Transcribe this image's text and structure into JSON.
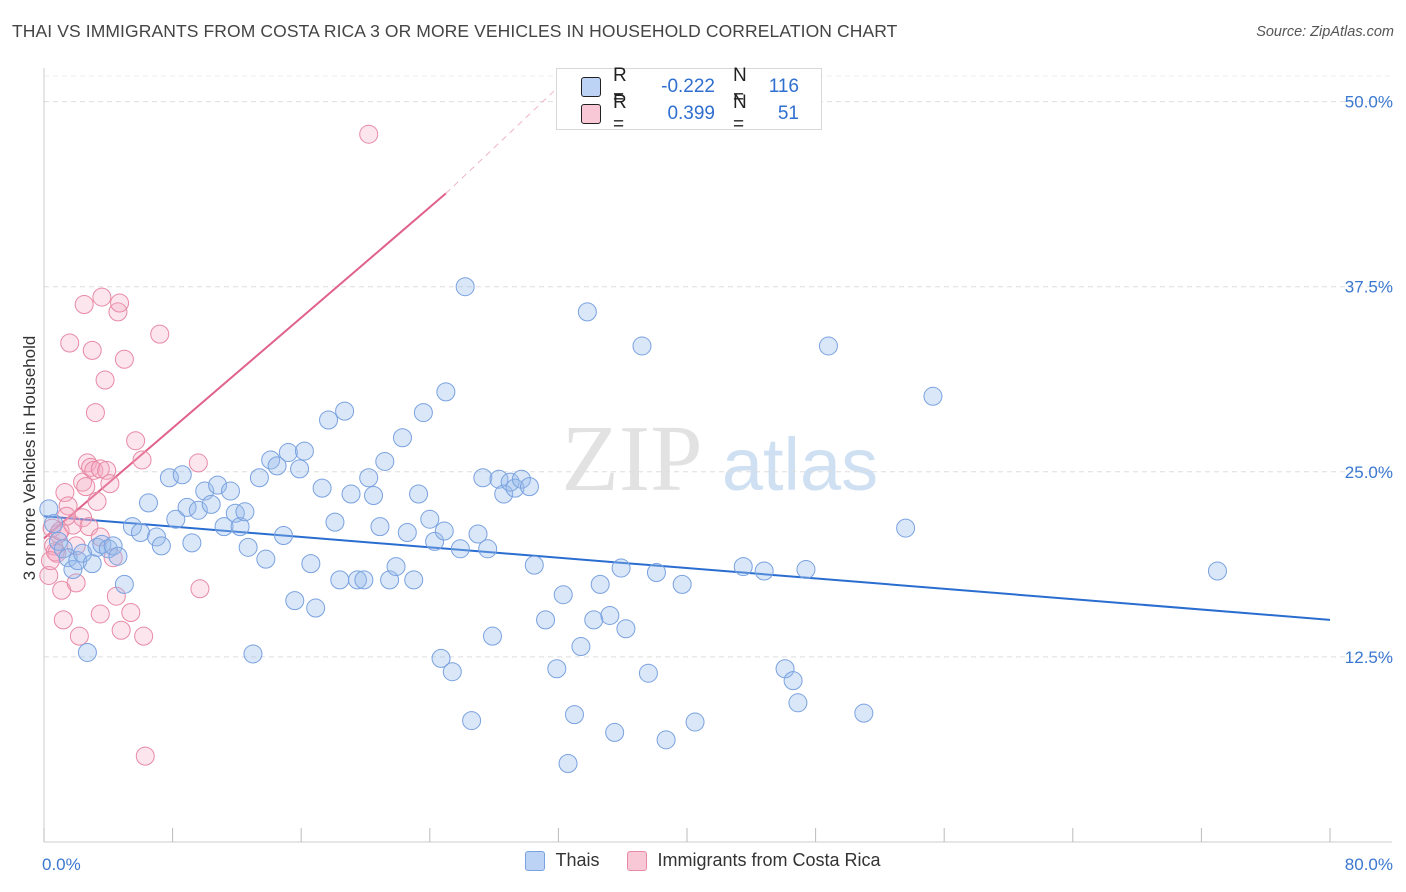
{
  "title": "THAI VS IMMIGRANTS FROM COSTA RICA 3 OR MORE VEHICLES IN HOUSEHOLD CORRELATION CHART",
  "source": "Source: ZipAtlas.com",
  "watermark": {
    "part1": "ZIP",
    "part2": "atlas"
  },
  "stats": [
    {
      "r_label": "R =",
      "r_value": "-0.222",
      "n_label": "N =",
      "n_value": "116",
      "color": "#7aa2e0"
    },
    {
      "r_label": "R =",
      "r_value": "0.399",
      "n_label": "N =",
      "n_value": "51",
      "color": "#e88aa6"
    }
  ],
  "legend": [
    {
      "label": "Thais",
      "color": "#7aa2e0"
    },
    {
      "label": "Immigrants from Costa Rica",
      "color": "#e88aa6"
    }
  ],
  "chart_data": {
    "type": "scatter",
    "title": "THAI VS IMMIGRANTS FROM COSTA RICA 3 OR MORE VEHICLES IN HOUSEHOLD CORRELATION CHART",
    "xlabel": "",
    "ylabel": "3 or more Vehicles in Household",
    "xlim": [
      0,
      80
    ],
    "ylim": [
      0,
      52
    ],
    "x_tick_labels": [
      "0.0%",
      "80.0%"
    ],
    "y_ticks": [
      12.5,
      25.0,
      37.5,
      50.0
    ],
    "y_tick_labels": [
      "12.5%",
      "25.0%",
      "37.5%",
      "50.0%"
    ],
    "grid": "horizontal dashed",
    "series": [
      {
        "name": "Thais",
        "color": "#7aa2e0",
        "trend": {
          "x": [
            0,
            80
          ],
          "y": [
            22.0,
            15.0
          ],
          "style": "solid"
        },
        "points": [
          [
            0.3,
            22.5
          ],
          [
            0.6,
            21.5
          ],
          [
            0.9,
            20.3
          ],
          [
            1.2,
            19.8
          ],
          [
            1.5,
            19.2
          ],
          [
            1.8,
            18.4
          ],
          [
            2.1,
            19.0
          ],
          [
            2.4,
            19.5
          ],
          [
            2.7,
            12.8
          ],
          [
            3.0,
            18.8
          ],
          [
            3.3,
            19.9
          ],
          [
            3.6,
            20.1
          ],
          [
            4.0,
            19.8
          ],
          [
            4.3,
            20.0
          ],
          [
            4.6,
            19.3
          ],
          [
            5.0,
            17.4
          ],
          [
            5.5,
            21.3
          ],
          [
            6.0,
            20.9
          ],
          [
            6.5,
            22.9
          ],
          [
            7.0,
            20.6
          ],
          [
            7.3,
            20.0
          ],
          [
            7.8,
            24.6
          ],
          [
            8.2,
            21.8
          ],
          [
            8.6,
            24.8
          ],
          [
            8.9,
            22.6
          ],
          [
            9.2,
            20.2
          ],
          [
            9.6,
            22.4
          ],
          [
            10.0,
            23.7
          ],
          [
            10.4,
            22.8
          ],
          [
            10.8,
            24.1
          ],
          [
            11.2,
            21.3
          ],
          [
            11.6,
            23.7
          ],
          [
            11.9,
            22.2
          ],
          [
            12.2,
            21.3
          ],
          [
            12.5,
            22.3
          ],
          [
            12.7,
            19.9
          ],
          [
            13.0,
            12.7
          ],
          [
            13.4,
            24.6
          ],
          [
            13.8,
            19.1
          ],
          [
            14.1,
            25.8
          ],
          [
            14.5,
            25.4
          ],
          [
            14.9,
            20.7
          ],
          [
            15.2,
            26.3
          ],
          [
            15.6,
            16.3
          ],
          [
            15.9,
            25.2
          ],
          [
            16.2,
            26.4
          ],
          [
            16.6,
            18.8
          ],
          [
            16.9,
            15.8
          ],
          [
            17.3,
            23.9
          ],
          [
            17.7,
            28.5
          ],
          [
            18.1,
            21.6
          ],
          [
            18.4,
            17.7
          ],
          [
            18.7,
            29.1
          ],
          [
            19.1,
            23.5
          ],
          [
            19.5,
            17.7
          ],
          [
            19.9,
            17.7
          ],
          [
            20.2,
            24.6
          ],
          [
            20.5,
            23.4
          ],
          [
            20.9,
            21.3
          ],
          [
            21.2,
            25.7
          ],
          [
            21.5,
            17.7
          ],
          [
            21.9,
            18.6
          ],
          [
            22.3,
            27.3
          ],
          [
            22.6,
            20.9
          ],
          [
            23.0,
            17.7
          ],
          [
            23.3,
            23.5
          ],
          [
            23.6,
            29.0
          ],
          [
            24.0,
            21.8
          ],
          [
            24.3,
            20.3
          ],
          [
            24.7,
            12.4
          ],
          [
            24.9,
            21.0
          ],
          [
            25.0,
            30.4
          ],
          [
            25.4,
            11.5
          ],
          [
            25.9,
            19.8
          ],
          [
            26.2,
            37.5
          ],
          [
            26.6,
            8.2
          ],
          [
            27.0,
            20.8
          ],
          [
            27.3,
            24.6
          ],
          [
            27.6,
            19.8
          ],
          [
            27.9,
            13.9
          ],
          [
            28.3,
            24.5
          ],
          [
            28.6,
            23.5
          ],
          [
            29.0,
            24.3
          ],
          [
            29.3,
            23.9
          ],
          [
            29.7,
            24.5
          ],
          [
            30.2,
            24.0
          ],
          [
            30.5,
            18.7
          ],
          [
            31.2,
            15.0
          ],
          [
            31.9,
            11.7
          ],
          [
            32.3,
            16.7
          ],
          [
            32.6,
            5.3
          ],
          [
            33.0,
            8.6
          ],
          [
            33.4,
            13.2
          ],
          [
            33.8,
            35.8
          ],
          [
            34.2,
            15.0
          ],
          [
            34.6,
            17.4
          ],
          [
            35.2,
            15.3
          ],
          [
            35.5,
            7.4
          ],
          [
            35.9,
            18.5
          ],
          [
            36.2,
            14.4
          ],
          [
            37.2,
            33.5
          ],
          [
            37.6,
            11.4
          ],
          [
            38.1,
            18.2
          ],
          [
            38.7,
            6.9
          ],
          [
            39.7,
            17.4
          ],
          [
            40.5,
            8.1
          ],
          [
            43.5,
            18.6
          ],
          [
            44.8,
            18.3
          ],
          [
            46.1,
            11.7
          ],
          [
            46.6,
            10.9
          ],
          [
            46.9,
            9.4
          ],
          [
            47.4,
            18.4
          ],
          [
            48.8,
            33.5
          ],
          [
            51.0,
            8.7
          ],
          [
            53.6,
            21.2
          ],
          [
            55.3,
            30.1
          ],
          [
            73.0,
            18.3
          ]
        ]
      },
      {
        "name": "Immigrants from Costa Rica",
        "color": "#e88aa6",
        "trend": {
          "x": [
            0,
            25
          ],
          "y": [
            20.5,
            43.8
          ],
          "dashed_extension_to": [
            32,
            51.0
          ],
          "style": "solid"
        },
        "points": [
          [
            0.3,
            18.0
          ],
          [
            0.5,
            21.2
          ],
          [
            0.7,
            19.6
          ],
          [
            0.9,
            20.8
          ],
          [
            1.1,
            17.0
          ],
          [
            1.2,
            15.0
          ],
          [
            1.3,
            23.6
          ],
          [
            1.5,
            22.7
          ],
          [
            1.6,
            33.7
          ],
          [
            1.8,
            21.4
          ],
          [
            2.0,
            17.5
          ],
          [
            2.0,
            20.0
          ],
          [
            2.2,
            13.9
          ],
          [
            2.4,
            24.3
          ],
          [
            2.4,
            21.9
          ],
          [
            2.5,
            36.3
          ],
          [
            2.7,
            25.6
          ],
          [
            2.8,
            21.3
          ],
          [
            2.9,
            25.3
          ],
          [
            3.0,
            33.2
          ],
          [
            3.1,
            25.1
          ],
          [
            3.2,
            29.0
          ],
          [
            3.3,
            23.0
          ],
          [
            3.5,
            15.4
          ],
          [
            3.5,
            20.6
          ],
          [
            3.5,
            25.2
          ],
          [
            3.6,
            36.8
          ],
          [
            3.8,
            31.2
          ],
          [
            3.9,
            25.1
          ],
          [
            4.1,
            24.2
          ],
          [
            4.3,
            19.2
          ],
          [
            4.5,
            16.6
          ],
          [
            4.6,
            35.8
          ],
          [
            4.7,
            36.4
          ],
          [
            4.8,
            14.3
          ],
          [
            5.0,
            32.6
          ],
          [
            5.4,
            15.5
          ],
          [
            5.7,
            27.1
          ],
          [
            6.1,
            25.8
          ],
          [
            6.2,
            13.9
          ],
          [
            6.3,
            5.8
          ],
          [
            7.2,
            34.3
          ],
          [
            9.6,
            25.6
          ],
          [
            9.7,
            17.1
          ],
          [
            20.2,
            47.8
          ],
          [
            0.6,
            20.0
          ],
          [
            1.0,
            21.0
          ],
          [
            0.8,
            19.5
          ],
          [
            1.4,
            22.0
          ],
          [
            2.6,
            24.0
          ],
          [
            0.4,
            19.0
          ]
        ]
      }
    ]
  }
}
